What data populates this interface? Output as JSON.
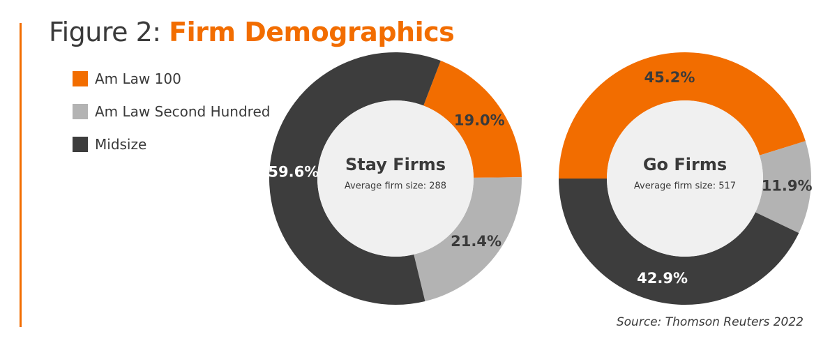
{
  "title": {
    "prefix": "Figure 2: ",
    "main": "Firm Demographics"
  },
  "source": "Source: Thomson Reuters 2022",
  "colors": {
    "accent": "#f26d00",
    "am_law_100": "#f26d00",
    "second_hundred": "#b3b3b3",
    "midsize": "#3d3d3d",
    "center": "#f0f0f0"
  },
  "chart_data": [
    {
      "type": "pie",
      "title": "Stay Firms",
      "subtitle": "Average firm size: 288",
      "legend_position": "left",
      "categories": [
        "Am Law 100",
        "Am Law Second Hundred",
        "Midsize"
      ],
      "values": [
        19.0,
        21.4,
        59.6
      ],
      "labels": [
        "19.0%",
        "21.4%",
        "59.6%"
      ]
    },
    {
      "type": "pie",
      "title": "Go Firms",
      "subtitle": "Average firm size: 517",
      "legend_position": "left",
      "categories": [
        "Am Law 100",
        "Am Law Second Hundred",
        "Midsize"
      ],
      "values": [
        45.2,
        11.9,
        42.9
      ],
      "labels": [
        "45.2%",
        "11.9%",
        "42.9%"
      ]
    }
  ]
}
